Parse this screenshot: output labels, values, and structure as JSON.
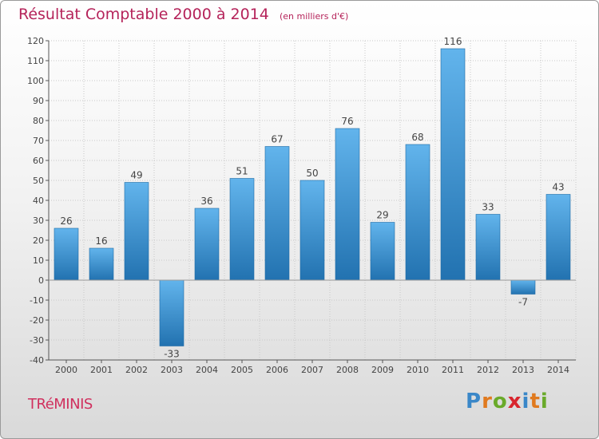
{
  "header": {
    "title": "Résultat Comptable 2000 à 2014",
    "subtitle": "(en milliers d'€)"
  },
  "footer": {
    "town": "TRéMINIS",
    "brand_letters": [
      "P",
      "r",
      "o",
      "x",
      "i",
      "t",
      "i"
    ],
    "brand_colors": [
      "#3a87c8",
      "#e07a1f",
      "#6aaa2a",
      "#d8262e",
      "#3a87c8",
      "#e07a1f",
      "#6aaa2a"
    ]
  },
  "colors": {
    "bar_light": "#62b4ec",
    "bar_dark": "#2272b0",
    "grid": "#c8c8c8",
    "axis": "#555555"
  },
  "chart_data": {
    "type": "bar",
    "title": "Résultat Comptable 2000 à 2014",
    "ylabel": "en milliers d'€",
    "xlabel": "",
    "categories": [
      "2000",
      "2001",
      "2002",
      "2003",
      "2004",
      "2005",
      "2006",
      "2007",
      "2008",
      "2009",
      "2010",
      "2011",
      "2012",
      "2013",
      "2014"
    ],
    "values": [
      26,
      16,
      49,
      -33,
      36,
      51,
      67,
      50,
      76,
      29,
      68,
      116,
      33,
      -7,
      43
    ],
    "ylim": [
      -40,
      120
    ],
    "yticks": [
      -40,
      -30,
      -20,
      -10,
      0,
      10,
      20,
      30,
      40,
      50,
      60,
      70,
      80,
      90,
      100,
      110,
      120
    ],
    "grid": true
  }
}
